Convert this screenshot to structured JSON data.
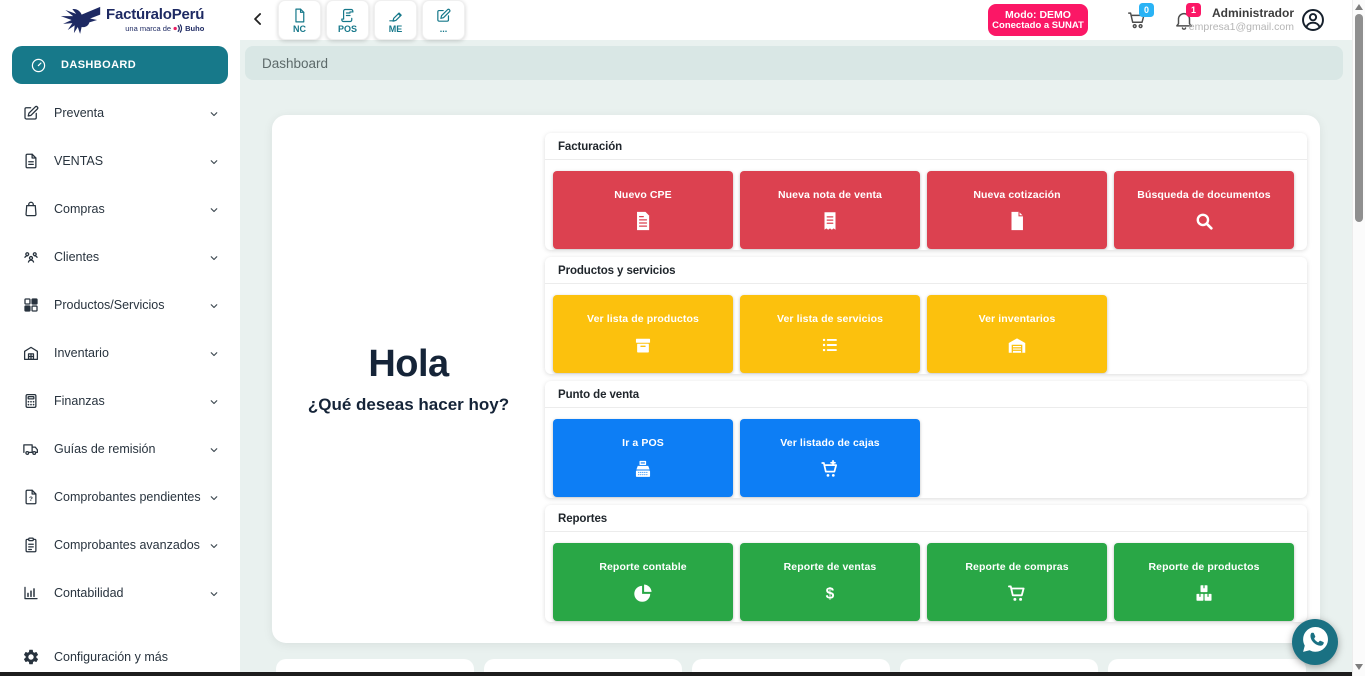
{
  "brand": {
    "name_part1": "Factúralo",
    "name_part2": "Perú",
    "tagline_prefix": "una marca de",
    "tagline_brand": "Buho"
  },
  "topbar": {
    "quick_actions": [
      {
        "label": "NC",
        "icon": "file"
      },
      {
        "label": "POS",
        "icon": "scroll"
      },
      {
        "label": "ME",
        "icon": "signature"
      },
      {
        "label": "...",
        "icon": "edit-square"
      }
    ],
    "mode_badge": {
      "line1": "Modo: DEMO",
      "line2": "Conectado a SUNAT"
    },
    "cart_count": "0",
    "notifications_count": "1",
    "user": {
      "role": "Administrador",
      "email": "empresa1@gmail.com"
    }
  },
  "sidebar": {
    "active_item": {
      "label": "DASHBOARD",
      "icon": "gauge"
    },
    "items": [
      {
        "label": "Preventa",
        "icon": "pen-square",
        "chevron": true
      },
      {
        "label": "VENTAS",
        "icon": "file-lines",
        "chevron": true
      },
      {
        "label": "Compras",
        "icon": "shopping-bag",
        "chevron": true
      },
      {
        "label": "Clientes",
        "icon": "users",
        "chevron": true
      },
      {
        "label": "Productos/Servicios",
        "icon": "grid",
        "chevron": true
      },
      {
        "label": "Inventario",
        "icon": "warehouse-home",
        "chevron": true
      },
      {
        "label": "Finanzas",
        "icon": "calculator",
        "chevron": true
      },
      {
        "label": "Guías de remisión",
        "icon": "truck",
        "chevron": true
      },
      {
        "label": "Comprobantes pendientes",
        "icon": "file-question",
        "chevron": true
      },
      {
        "label": "Comprobantes avanzados",
        "icon": "clipboard",
        "chevron": true
      },
      {
        "label": "Contabilidad",
        "icon": "chart-column",
        "chevron": true
      },
      {
        "label": "Configuración y más",
        "icon": "gear",
        "chevron": false,
        "spaced": true
      }
    ]
  },
  "breadcrumb": "Dashboard",
  "greeting": {
    "title": "Hola",
    "subtitle": "¿Qué deseas hacer hoy?"
  },
  "sections": [
    {
      "title": "Facturación",
      "color": "#dc4150",
      "buttons": [
        {
          "label": "Nuevo CPE",
          "icon": "file-invoice"
        },
        {
          "label": "Nueva nota de venta",
          "icon": "receipt"
        },
        {
          "label": "Nueva cotización",
          "icon": "file-solid"
        },
        {
          "label": "Búsqueda de documentos",
          "icon": "search"
        }
      ]
    },
    {
      "title": "Productos y servicios",
      "color": "#fcc10d",
      "buttons": [
        {
          "label": "Ver lista de productos",
          "icon": "box"
        },
        {
          "label": "Ver lista de servicios",
          "icon": "list"
        },
        {
          "label": "Ver inventarios",
          "icon": "warehouse"
        }
      ]
    },
    {
      "title": "Punto de venta",
      "color": "#0d7ef5",
      "buttons": [
        {
          "label": "Ir a POS",
          "icon": "cash-register"
        },
        {
          "label": "Ver listado de cajas",
          "icon": "cart-plus"
        }
      ]
    },
    {
      "title": "Reportes",
      "color": "#29a746",
      "buttons": [
        {
          "label": "Reporte contable",
          "icon": "chart-pie"
        },
        {
          "label": "Reporte de ventas",
          "icon": "dollar"
        },
        {
          "label": "Reporte de compras",
          "icon": "cart-solid"
        },
        {
          "label": "Reporte de productos",
          "icon": "boxes"
        }
      ]
    }
  ],
  "colors": {
    "teal": "#17798a",
    "pink": "#fb1766",
    "navy": "#1e2a63",
    "cart_badge_blue": "#2ab3f5",
    "background": "#e9f1ef",
    "breadcrumb_bg": "#d9e7e5",
    "red": "#dc4150",
    "yellow": "#fcc10d",
    "blue": "#0d7ef5",
    "green": "#29a746"
  }
}
